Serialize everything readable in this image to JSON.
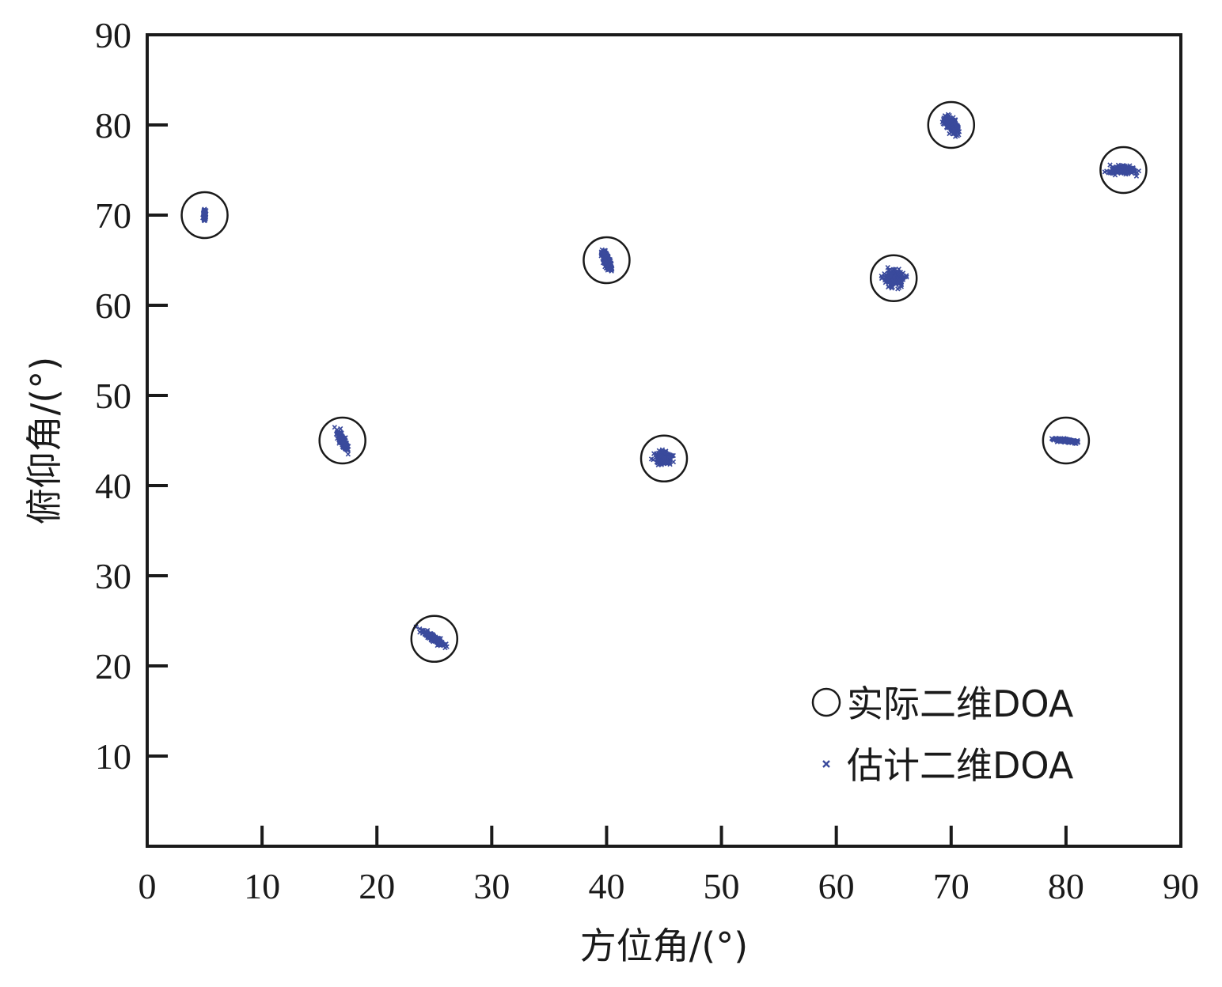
{
  "chart_data": {
    "type": "scatter",
    "xlabel": "方位角/(°)",
    "ylabel": "俯仰角/(°)",
    "xlim": [
      0,
      90
    ],
    "ylim": [
      0,
      90
    ],
    "x_ticks": [
      "0",
      "10",
      "20",
      "30",
      "40",
      "50",
      "60",
      "70",
      "80",
      "90"
    ],
    "y_ticks": [
      "10",
      "20",
      "30",
      "40",
      "50",
      "60",
      "70",
      "80",
      "90"
    ],
    "grid": false,
    "legend_position": "bottom-right",
    "series": [
      {
        "name": "实际二维DOA",
        "marker": "open-circle",
        "color": "#1a1a1a",
        "points": [
          {
            "x": 5,
            "y": 70
          },
          {
            "x": 17,
            "y": 45
          },
          {
            "x": 25,
            "y": 23
          },
          {
            "x": 40,
            "y": 65
          },
          {
            "x": 45,
            "y": 43
          },
          {
            "x": 65,
            "y": 63
          },
          {
            "x": 70,
            "y": 80
          },
          {
            "x": 80,
            "y": 45
          },
          {
            "x": 85,
            "y": 75
          }
        ]
      },
      {
        "name": "估计二维DOA",
        "marker": "x",
        "color": "#3a4a9c",
        "clusters": [
          {
            "x": 5,
            "y": 70,
            "spread_x": 0.15,
            "spread_y": 0.8,
            "angle": 0
          },
          {
            "x": 17,
            "y": 45,
            "spread_x": 0.4,
            "spread_y": 1.6,
            "angle": -25
          },
          {
            "x": 25,
            "y": 23,
            "spread_x": 0.35,
            "spread_y": 2.2,
            "angle": -55
          },
          {
            "x": 40,
            "y": 65,
            "spread_x": 0.4,
            "spread_y": 1.8,
            "angle": -20
          },
          {
            "x": 45,
            "y": 43,
            "spread_x": 1.0,
            "spread_y": 1.0,
            "angle": 0
          },
          {
            "x": 65,
            "y": 63,
            "spread_x": 1.3,
            "spread_y": 1.3,
            "angle": 0
          },
          {
            "x": 70,
            "y": 80,
            "spread_x": 0.6,
            "spread_y": 1.7,
            "angle": -35
          },
          {
            "x": 80,
            "y": 45,
            "spread_x": 0.2,
            "spread_y": 2.0,
            "angle": -83
          },
          {
            "x": 85,
            "y": 75,
            "spread_x": 0.5,
            "spread_y": 2.2,
            "angle": -90
          }
        ]
      }
    ]
  }
}
